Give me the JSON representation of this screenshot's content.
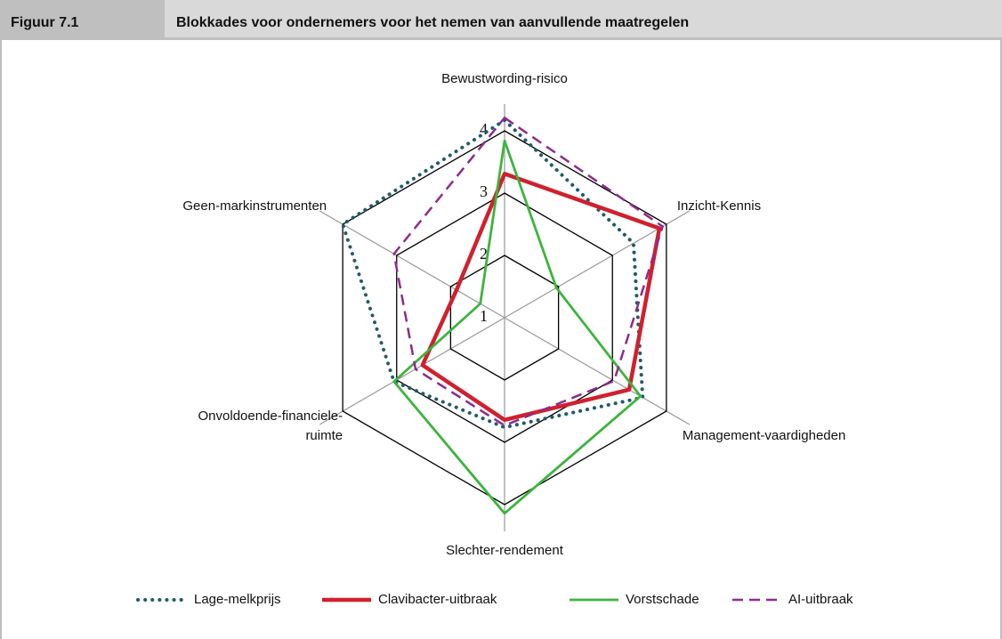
{
  "header": {
    "figure": "Figuur 7.1",
    "title": "Blokkades voor ondernemers voor het nemen van aanvullende maatregelen"
  },
  "chart_data": {
    "type": "radar",
    "categories": [
      "Bewustwording-risico",
      "Inzicht-Kennis",
      "Management-vaardigheden",
      "Slechter-rendement",
      "Onvoldoende-financiele-ruimte",
      "Geen-markinstrumenten"
    ],
    "rlim": [
      1,
      4
    ],
    "rticks": [
      1,
      2,
      3,
      4
    ],
    "grid": true,
    "series": [
      {
        "name": "Lage-melkprijs",
        "color": "#1f5a6b",
        "style": "dotted",
        "values": [
          4.17,
          3.39,
          3.56,
          2.76,
          3.05,
          4.0
        ]
      },
      {
        "name": "Clavibacter-uitbraak",
        "color": "#d0202e",
        "style": "solid-thick",
        "values": [
          3.31,
          3.87,
          3.31,
          2.64,
          2.52,
          1.89
        ]
      },
      {
        "name": "Vorstschade",
        "color": "#3cb43c",
        "style": "solid",
        "values": [
          3.84,
          1.96,
          3.52,
          4.14,
          3.05,
          1.45
        ]
      },
      {
        "name": "AI-uitbraak",
        "color": "#8e2a8e",
        "style": "dashed",
        "values": [
          4.21,
          3.93,
          3.03,
          2.73,
          2.65,
          3.05
        ]
      }
    ]
  }
}
